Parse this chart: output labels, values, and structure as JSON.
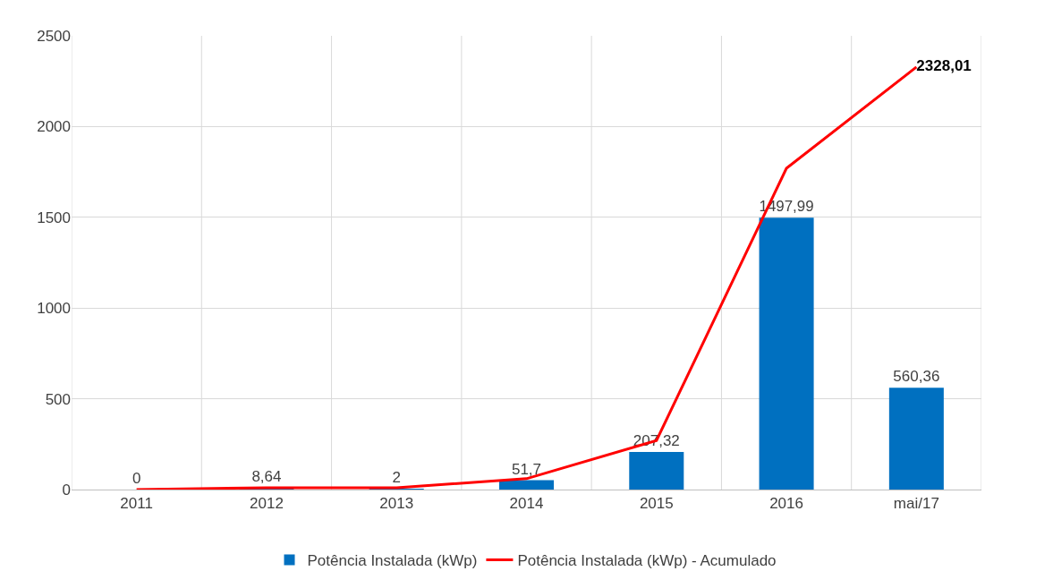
{
  "chart_data": {
    "type": "bar",
    "categories": [
      "2011",
      "2012",
      "2013",
      "2014",
      "2015",
      "2016",
      "mai/17"
    ],
    "series": [
      {
        "name": "Potência Instalada (kWp)",
        "color": "#0070c0",
        "values": [
          0,
          8.64,
          2,
          51.7,
          207.32,
          1497.99,
          560.36
        ],
        "value_labels": [
          "0",
          "8,64",
          "2",
          "51,7",
          "207,32",
          "1497,99",
          "560,36"
        ]
      },
      {
        "name": "Potência Instalada (kWp) - Acumulado",
        "type": "line",
        "color": "#ff0000",
        "values": [
          0,
          10,
          10,
          60,
          270,
          1770,
          2328.01
        ],
        "value_labels": [
          null,
          null,
          null,
          null,
          null,
          null,
          "2328,01"
        ]
      }
    ],
    "ylim": [
      0,
      2500
    ],
    "yticks": [
      0,
      500,
      1000,
      1500,
      2000,
      2500
    ],
    "grid": true,
    "legend": "bottom",
    "marker": "none",
    "line_style": "solid"
  }
}
